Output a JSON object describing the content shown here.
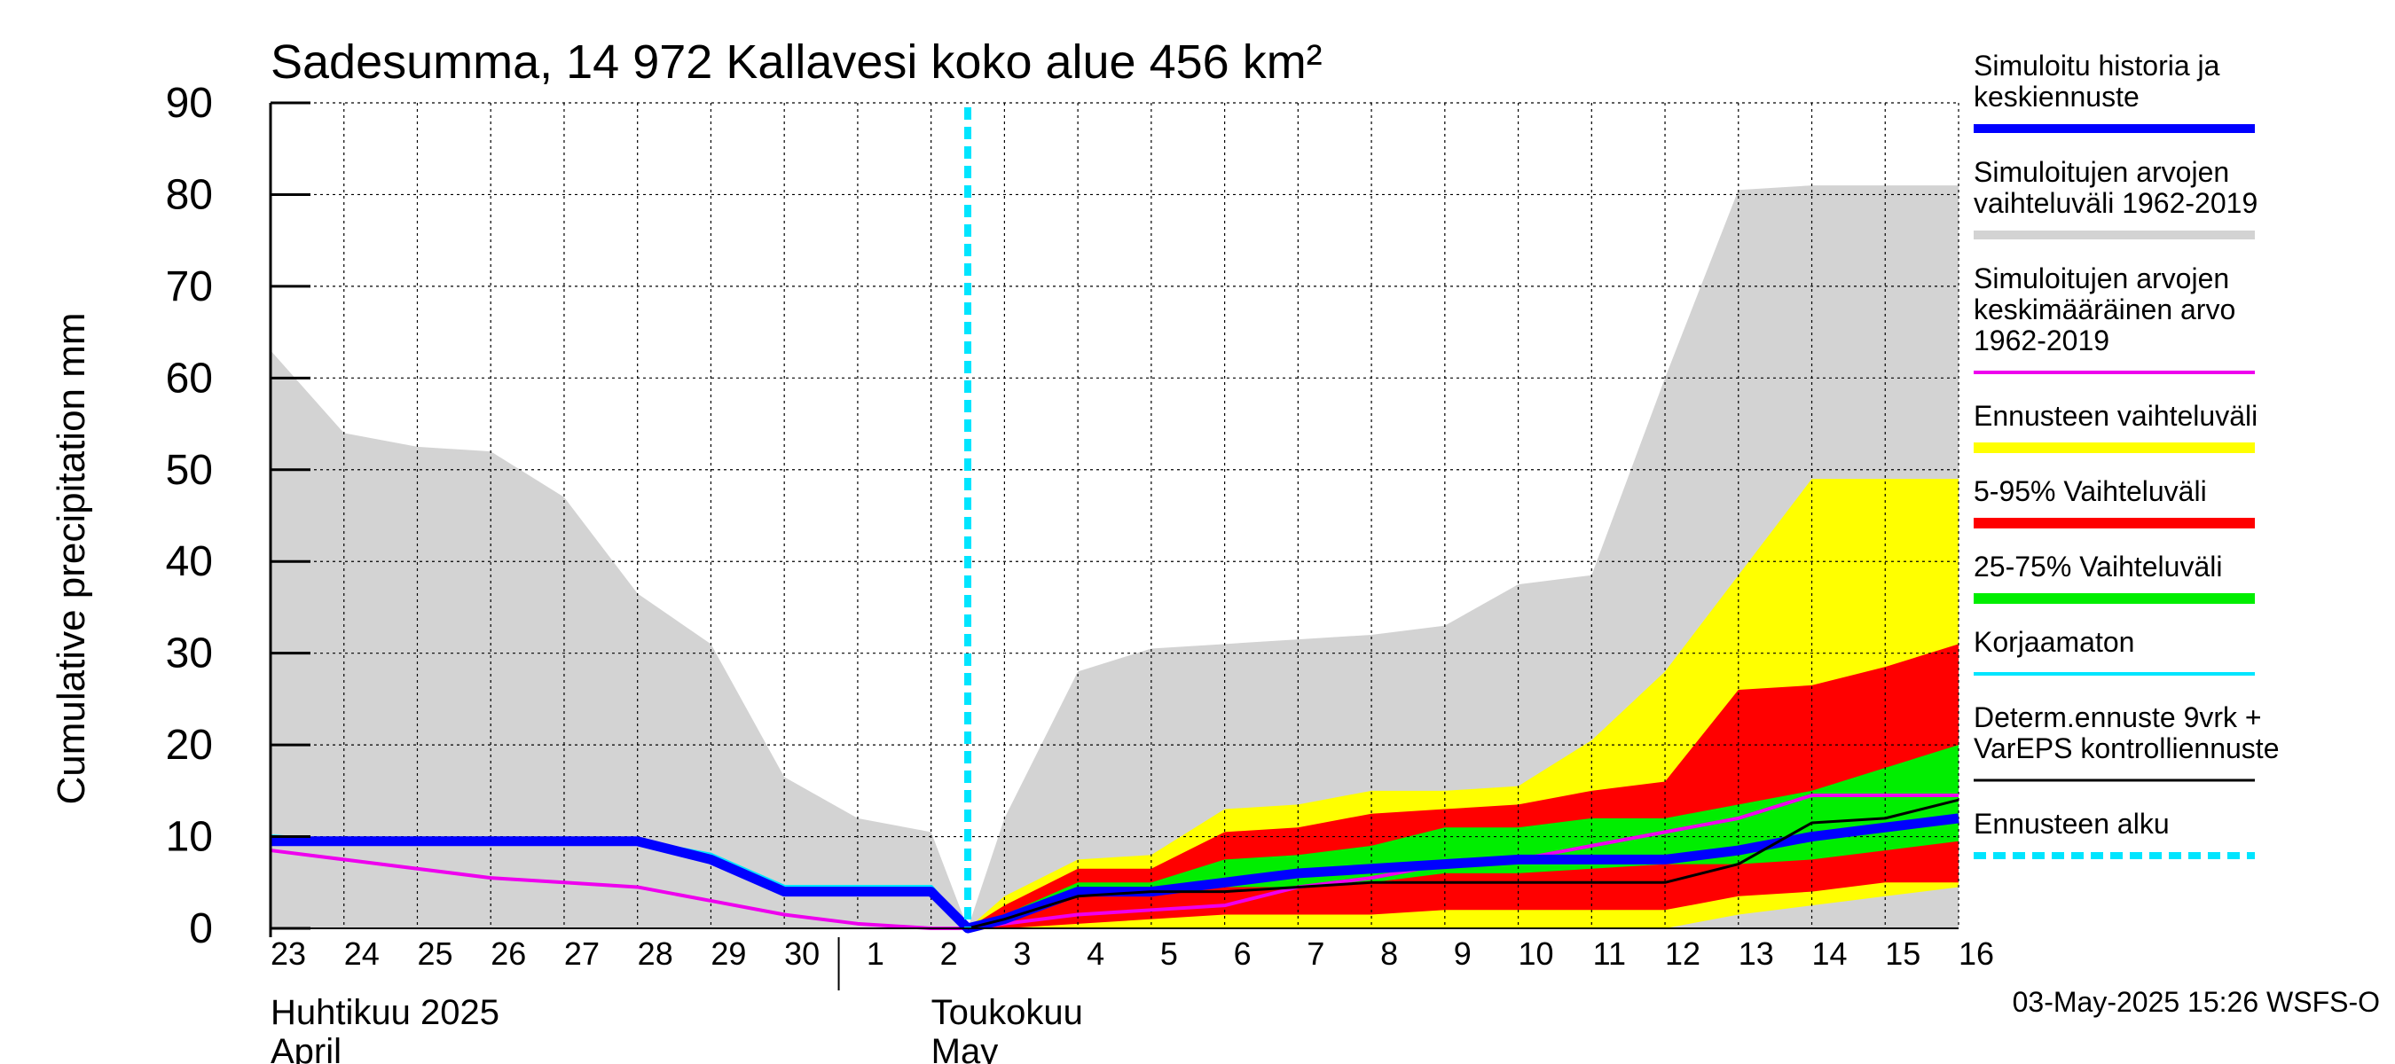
{
  "chart_data": {
    "type": "area",
    "title": "Sadesumma, 14 972 Kallavesi koko alue 456 km²",
    "ylabel": "Cumulative precipitation   mm",
    "ylim": [
      0,
      90
    ],
    "yticks": [
      0,
      10,
      20,
      30,
      40,
      50,
      60,
      70,
      80,
      90
    ],
    "x_dates": [
      "23",
      "24",
      "25",
      "26",
      "27",
      "28",
      "29",
      "30",
      "1",
      "2",
      "3",
      "4",
      "5",
      "6",
      "7",
      "8",
      "9",
      "10",
      "11",
      "12",
      "13",
      "14",
      "15",
      "16"
    ],
    "x_month_labels": [
      {
        "line1": "Huhtikuu  2025",
        "line2": "April",
        "at_day": 0
      },
      {
        "line1": "Toukokuu",
        "line2": "May",
        "at_day": 9
      }
    ],
    "forecast_start_day": 9.5,
    "series": [
      {
        "name": "range_1962_2019",
        "kind": "band",
        "color": "#d3d3d3",
        "x": [
          0,
          1,
          2,
          3,
          4,
          5,
          6,
          7,
          8,
          9,
          9.5,
          10,
          11,
          12,
          13,
          14,
          15,
          16,
          17,
          18,
          19,
          20,
          21,
          22,
          23
        ],
        "lower": [
          0,
          0,
          0,
          0,
          0,
          0,
          0,
          0,
          0,
          0,
          0,
          0,
          0,
          0,
          0,
          0,
          0,
          0,
          0,
          0,
          0,
          0,
          0,
          0,
          0
        ],
        "upper": [
          63,
          54,
          52.5,
          52,
          47,
          36.5,
          31,
          16.5,
          12,
          10.5,
          0,
          12,
          28,
          30.5,
          31,
          31.5,
          32,
          33,
          37.5,
          38.5,
          60,
          80.5,
          81,
          81,
          81
        ]
      },
      {
        "name": "forecast_range",
        "kind": "band",
        "color": "#ffff00",
        "x": [
          9.5,
          10,
          11,
          12,
          13,
          14,
          15,
          16,
          17,
          18,
          19,
          20,
          21,
          22,
          23
        ],
        "lower": [
          0,
          0,
          0,
          0,
          0,
          0,
          0,
          0,
          0,
          0,
          0,
          1.5,
          2.5,
          3.5,
          4.5
        ],
        "upper": [
          0,
          3.5,
          7.5,
          8,
          13,
          13.5,
          15,
          15,
          15.5,
          20.5,
          28,
          38.5,
          49,
          49,
          49
        ]
      },
      {
        "name": "p5_95",
        "kind": "band",
        "color": "#ff0000",
        "x": [
          9.5,
          10,
          11,
          12,
          13,
          14,
          15,
          16,
          17,
          18,
          19,
          20,
          21,
          22,
          23
        ],
        "lower": [
          0,
          0,
          0.5,
          1,
          1.5,
          1.5,
          1.5,
          2,
          2,
          2,
          2,
          3.5,
          4,
          5,
          5
        ],
        "upper": [
          0,
          2.5,
          6.5,
          6.5,
          10.5,
          11,
          12.5,
          13,
          13.5,
          15,
          16,
          26,
          26.5,
          28.5,
          31
        ]
      },
      {
        "name": "p25_75",
        "kind": "band",
        "color": "#00ee00",
        "x": [
          9.5,
          10,
          11,
          12,
          13,
          14,
          15,
          16,
          17,
          18,
          19,
          20,
          21,
          22,
          23
        ],
        "lower": [
          0,
          0.5,
          3.5,
          3.5,
          4.5,
          4.5,
          5,
          6,
          6,
          6.5,
          7,
          7,
          7.5,
          8.5,
          9.5
        ],
        "upper": [
          0,
          1.5,
          5,
          5,
          7.5,
          8,
          9,
          11,
          11,
          12,
          12,
          13.5,
          15,
          17.5,
          20
        ]
      },
      {
        "name": "Simuloitujen arvojen keskimääräinen arvo",
        "kind": "line",
        "color": "#ee00ee",
        "width": 4,
        "x": [
          0,
          1,
          2,
          3,
          4,
          5,
          6,
          7,
          8,
          9,
          9.5,
          10,
          11,
          12,
          13,
          14,
          15,
          16,
          17,
          18,
          19,
          20,
          21,
          22,
          23
        ],
        "y": [
          8.5,
          7.5,
          6.5,
          5.5,
          5,
          4.5,
          3,
          1.5,
          0.5,
          0,
          0,
          0.5,
          1.5,
          2,
          2.5,
          4.5,
          5.5,
          7,
          7.5,
          9,
          10.5,
          12,
          14.5,
          14.5,
          14.5
        ]
      },
      {
        "name": "Korjaamaton",
        "kind": "line",
        "color": "#00e5ff",
        "width": 5,
        "x": [
          0,
          1,
          2,
          3,
          4,
          5,
          6,
          7,
          8,
          9,
          9.5
        ],
        "y": [
          10,
          9.5,
          9.5,
          9.5,
          9.5,
          9.5,
          8,
          4.5,
          4.5,
          4.5,
          0
        ]
      },
      {
        "name": "Simuloitu historia ja keskiennuste",
        "kind": "line",
        "color": "#0000ff",
        "width": 11,
        "x": [
          0,
          1,
          2,
          3,
          4,
          5,
          6,
          7,
          8,
          9,
          9.5,
          10,
          11,
          12,
          13,
          14,
          15,
          16,
          17,
          18,
          19,
          20,
          21,
          22,
          23
        ],
        "y": [
          9.5,
          9.5,
          9.5,
          9.5,
          9.5,
          9.5,
          7.5,
          4,
          4,
          4,
          0,
          1,
          4,
          4,
          5,
          6,
          6.5,
          7,
          7.5,
          7.5,
          7.5,
          8.5,
          10,
          11,
          12
        ]
      },
      {
        "name": "Determ.ennuste 9vrk + VarEPS kontrolliennuste",
        "kind": "line",
        "color": "#000000",
        "width": 3,
        "x": [
          9.5,
          10,
          11,
          12,
          13,
          14,
          15,
          16,
          17,
          18,
          19,
          20,
          21,
          22,
          23
        ],
        "y": [
          0,
          1,
          3.5,
          4,
          4,
          4.5,
          5,
          5,
          5,
          5,
          5,
          7,
          11.5,
          12,
          14
        ]
      }
    ],
    "legend": [
      {
        "label": [
          "Simuloitu historia ja",
          "keskiennuste"
        ],
        "color": "#0000ff",
        "style": "solid",
        "thick": 10
      },
      {
        "label": [
          "Simuloitujen arvojen",
          "vaihteluväli 1962-2019"
        ],
        "color": "#d3d3d3",
        "style": "solid",
        "thick": 10
      },
      {
        "label": [
          "Simuloitujen arvojen",
          "keskimääräinen arvo",
          "   1962-2019"
        ],
        "color": "#ee00ee",
        "style": "solid",
        "thick": 4
      },
      {
        "label": [
          "Ennusteen vaihteluväli"
        ],
        "color": "#ffff00",
        "style": "solid",
        "thick": 12
      },
      {
        "label": [
          "5-95% Vaihteluväli"
        ],
        "color": "#ff0000",
        "style": "solid",
        "thick": 12
      },
      {
        "label": [
          "25-75% Vaihteluväli"
        ],
        "color": "#00ee00",
        "style": "solid",
        "thick": 12
      },
      {
        "label": [
          "Korjaamaton"
        ],
        "color": "#00e5ff",
        "style": "solid",
        "thick": 4
      },
      {
        "label": [
          "Determ.ennuste 9vrk +",
          "VarEPS kontrolliennuste"
        ],
        "color": "#000000",
        "style": "solid",
        "thick": 3
      },
      {
        "label": [
          "Ennusteen alku"
        ],
        "color": "#00e5ff",
        "style": "dashed",
        "thick": 8
      }
    ],
    "footer": "03-May-2025 15:26 WSFS-O"
  }
}
